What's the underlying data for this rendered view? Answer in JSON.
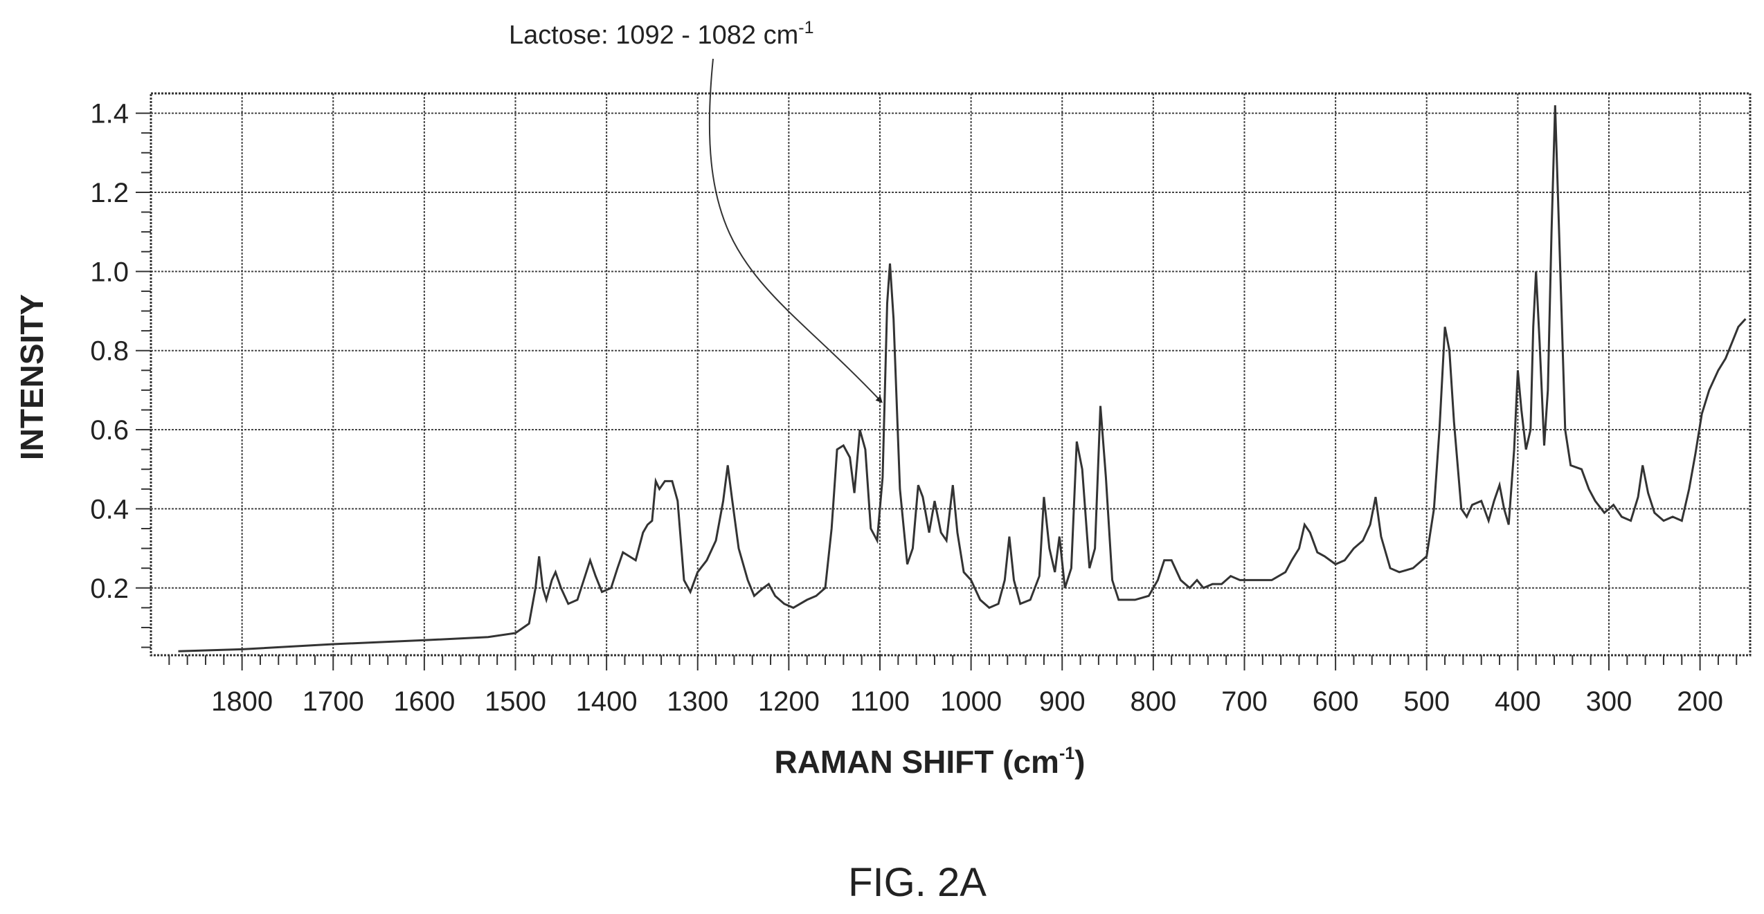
{
  "figure_label": "FIG. 2A",
  "chart_data": {
    "type": "line",
    "title": "",
    "xlabel": "RAMAN SHIFT (cm",
    "xlabel_sup": "-1",
    "xlabel_suffix": ")",
    "ylabel": "INTENSITY",
    "xlim": [
      1900,
      145
    ],
    "ylim": [
      0.03,
      1.45
    ],
    "x_reversed": true,
    "grid": true,
    "xticks": [
      1800,
      1700,
      1600,
      1500,
      1400,
      1300,
      1200,
      1100,
      1000,
      900,
      800,
      700,
      600,
      500,
      400,
      300,
      200
    ],
    "xtick_labels": [
      "1800",
      "1700",
      "1600",
      "1500",
      "1400",
      "1300",
      "1200",
      "1100",
      "1000",
      "900",
      "800",
      "700",
      "600",
      "500",
      "400",
      "300",
      "200"
    ],
    "yticks": [
      0.2,
      0.4,
      0.6,
      0.8,
      1.0,
      1.2,
      1.4
    ],
    "ytick_labels": [
      "0.2",
      "0.4",
      "0.6",
      "0.8",
      "1.0",
      "1.2",
      "1.4"
    ],
    "annotation": {
      "text": "Lactose: 1092 - 1082 cm",
      "sup": "-1",
      "target_x": 1092,
      "target_y": 0.67
    },
    "series": [
      {
        "values": [
          [
            1870,
            0.04
          ],
          [
            1800,
            0.045
          ],
          [
            1700,
            0.058
          ],
          [
            1600,
            0.068
          ],
          [
            1530,
            0.076
          ],
          [
            1500,
            0.086
          ],
          [
            1485,
            0.11
          ],
          [
            1478,
            0.2
          ],
          [
            1474,
            0.28
          ],
          [
            1470,
            0.2
          ],
          [
            1466,
            0.17
          ],
          [
            1460,
            0.22
          ],
          [
            1456,
            0.24
          ],
          [
            1450,
            0.2
          ],
          [
            1442,
            0.16
          ],
          [
            1432,
            0.17
          ],
          [
            1425,
            0.22
          ],
          [
            1418,
            0.27
          ],
          [
            1412,
            0.23
          ],
          [
            1405,
            0.19
          ],
          [
            1395,
            0.2
          ],
          [
            1388,
            0.25
          ],
          [
            1382,
            0.29
          ],
          [
            1375,
            0.28
          ],
          [
            1368,
            0.27
          ],
          [
            1360,
            0.34
          ],
          [
            1355,
            0.36
          ],
          [
            1350,
            0.37
          ],
          [
            1346,
            0.47
          ],
          [
            1342,
            0.45
          ],
          [
            1336,
            0.47
          ],
          [
            1328,
            0.47
          ],
          [
            1322,
            0.42
          ],
          [
            1315,
            0.22
          ],
          [
            1308,
            0.19
          ],
          [
            1300,
            0.24
          ],
          [
            1290,
            0.27
          ],
          [
            1280,
            0.32
          ],
          [
            1272,
            0.42
          ],
          [
            1267,
            0.51
          ],
          [
            1262,
            0.42
          ],
          [
            1255,
            0.3
          ],
          [
            1245,
            0.22
          ],
          [
            1238,
            0.18
          ],
          [
            1228,
            0.2
          ],
          [
            1222,
            0.21
          ],
          [
            1215,
            0.18
          ],
          [
            1205,
            0.16
          ],
          [
            1195,
            0.15
          ],
          [
            1180,
            0.17
          ],
          [
            1170,
            0.18
          ],
          [
            1160,
            0.2
          ],
          [
            1153,
            0.35
          ],
          [
            1147,
            0.55
          ],
          [
            1140,
            0.56
          ],
          [
            1133,
            0.53
          ],
          [
            1128,
            0.44
          ],
          [
            1122,
            0.6
          ],
          [
            1116,
            0.55
          ],
          [
            1110,
            0.35
          ],
          [
            1103,
            0.32
          ],
          [
            1097,
            0.48
          ],
          [
            1092,
            0.92
          ],
          [
            1089,
            1.02
          ],
          [
            1085,
            0.88
          ],
          [
            1078,
            0.45
          ],
          [
            1070,
            0.26
          ],
          [
            1064,
            0.3
          ],
          [
            1058,
            0.46
          ],
          [
            1053,
            0.43
          ],
          [
            1046,
            0.34
          ],
          [
            1040,
            0.42
          ],
          [
            1033,
            0.34
          ],
          [
            1027,
            0.32
          ],
          [
            1020,
            0.46
          ],
          [
            1015,
            0.34
          ],
          [
            1008,
            0.24
          ],
          [
            1000,
            0.22
          ],
          [
            990,
            0.17
          ],
          [
            980,
            0.15
          ],
          [
            970,
            0.16
          ],
          [
            963,
            0.22
          ],
          [
            958,
            0.33
          ],
          [
            953,
            0.22
          ],
          [
            946,
            0.16
          ],
          [
            935,
            0.17
          ],
          [
            925,
            0.23
          ],
          [
            920,
            0.43
          ],
          [
            914,
            0.3
          ],
          [
            908,
            0.24
          ],
          [
            903,
            0.33
          ],
          [
            897,
            0.2
          ],
          [
            890,
            0.25
          ],
          [
            884,
            0.57
          ],
          [
            878,
            0.5
          ],
          [
            870,
            0.25
          ],
          [
            864,
            0.3
          ],
          [
            858,
            0.66
          ],
          [
            852,
            0.48
          ],
          [
            845,
            0.22
          ],
          [
            838,
            0.17
          ],
          [
            820,
            0.17
          ],
          [
            805,
            0.18
          ],
          [
            795,
            0.22
          ],
          [
            788,
            0.27
          ],
          [
            780,
            0.27
          ],
          [
            770,
            0.22
          ],
          [
            760,
            0.2
          ],
          [
            752,
            0.22
          ],
          [
            745,
            0.2
          ],
          [
            735,
            0.21
          ],
          [
            725,
            0.21
          ],
          [
            715,
            0.23
          ],
          [
            705,
            0.22
          ],
          [
            690,
            0.22
          ],
          [
            670,
            0.22
          ],
          [
            655,
            0.24
          ],
          [
            648,
            0.27
          ],
          [
            640,
            0.3
          ],
          [
            634,
            0.36
          ],
          [
            628,
            0.34
          ],
          [
            620,
            0.29
          ],
          [
            612,
            0.28
          ],
          [
            600,
            0.26
          ],
          [
            590,
            0.27
          ],
          [
            580,
            0.3
          ],
          [
            570,
            0.32
          ],
          [
            562,
            0.36
          ],
          [
            556,
            0.43
          ],
          [
            550,
            0.33
          ],
          [
            540,
            0.25
          ],
          [
            530,
            0.24
          ],
          [
            515,
            0.25
          ],
          [
            500,
            0.28
          ],
          [
            492,
            0.4
          ],
          [
            486,
            0.6
          ],
          [
            480,
            0.86
          ],
          [
            475,
            0.8
          ],
          [
            470,
            0.62
          ],
          [
            462,
            0.4
          ],
          [
            456,
            0.38
          ],
          [
            450,
            0.41
          ],
          [
            440,
            0.42
          ],
          [
            432,
            0.37
          ],
          [
            426,
            0.42
          ],
          [
            420,
            0.46
          ],
          [
            415,
            0.4
          ],
          [
            410,
            0.36
          ],
          [
            404,
            0.55
          ],
          [
            400,
            0.75
          ],
          [
            396,
            0.65
          ],
          [
            391,
            0.55
          ],
          [
            386,
            0.6
          ],
          [
            383,
            0.86
          ],
          [
            380,
            1.0
          ],
          [
            376,
            0.82
          ],
          [
            371,
            0.56
          ],
          [
            367,
            0.7
          ],
          [
            363,
            1.1
          ],
          [
            359,
            1.42
          ],
          [
            354,
            1.05
          ],
          [
            348,
            0.6
          ],
          [
            342,
            0.51
          ],
          [
            330,
            0.5
          ],
          [
            322,
            0.45
          ],
          [
            315,
            0.42
          ],
          [
            305,
            0.39
          ],
          [
            295,
            0.41
          ],
          [
            286,
            0.38
          ],
          [
            276,
            0.37
          ],
          [
            268,
            0.43
          ],
          [
            263,
            0.51
          ],
          [
            257,
            0.44
          ],
          [
            250,
            0.39
          ],
          [
            240,
            0.37
          ],
          [
            230,
            0.38
          ],
          [
            220,
            0.37
          ],
          [
            212,
            0.45
          ],
          [
            205,
            0.54
          ],
          [
            198,
            0.64
          ],
          [
            190,
            0.7
          ],
          [
            180,
            0.75
          ],
          [
            172,
            0.78
          ],
          [
            165,
            0.82
          ],
          [
            158,
            0.86
          ],
          [
            150,
            0.88
          ]
        ]
      }
    ]
  }
}
